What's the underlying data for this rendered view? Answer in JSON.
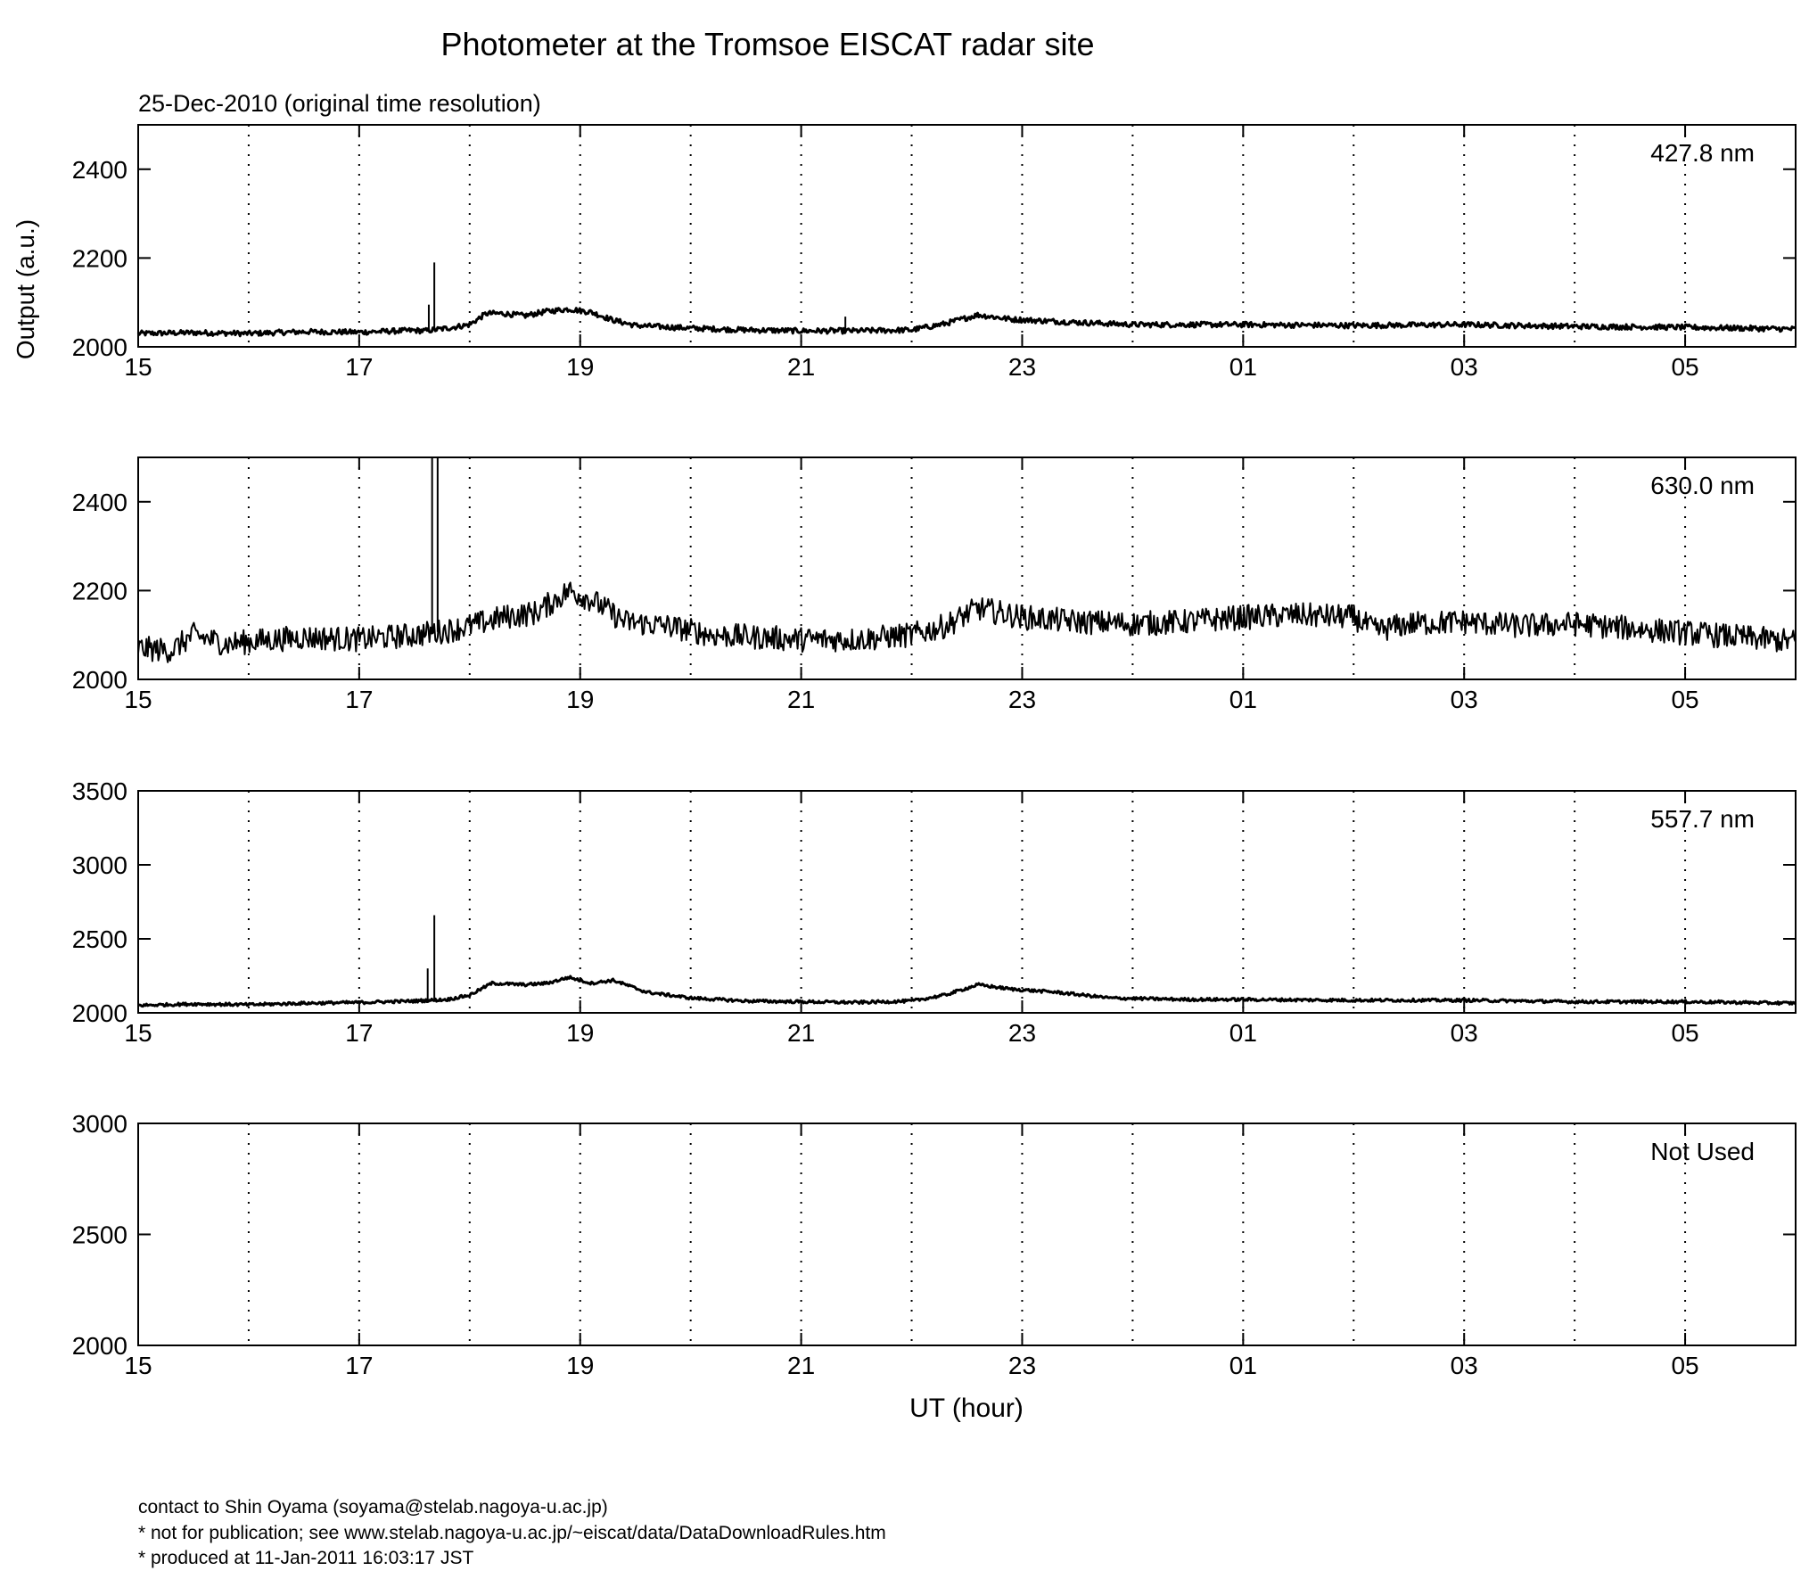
{
  "title": "Photometer at the Tromsoe EISCAT radar site",
  "subtitle": "25-Dec-2010 (original time resolution)",
  "colors": {
    "background": "#ffffff",
    "ink": "#000000"
  },
  "footer": {
    "contact": "contact to Shin Oyama (soyama@stelab.nagoya-u.ac.jp)",
    "notice": "* not for publication; see www.stelab.nagoya-u.ac.jp/~eiscat/data/DataDownloadRules.htm",
    "produced": "* produced at 11-Jan-2011 16:03:17 JST"
  },
  "chart_data": [
    {
      "type": "line",
      "label": "427.8 nm",
      "ylabel": "Output (a.u.)",
      "xlabel": "",
      "xlim": [
        15,
        30
      ],
      "ylim": [
        2000,
        2500
      ],
      "xticks": [
        "15",
        "17",
        "19",
        "21",
        "23",
        "01",
        "03",
        "05"
      ],
      "yticks": [
        2000,
        2200,
        2400
      ],
      "grid": "dotted vertical every hour",
      "noise": 6,
      "series": [
        {
          "x": [
            15,
            15.5,
            16,
            16.5,
            17,
            17.5,
            17.6,
            17.8,
            18,
            18.15,
            18.3,
            18.5,
            18.7,
            18.9,
            19.1,
            19.3,
            19.5,
            20,
            20.5,
            21,
            21.5,
            22,
            22.3,
            22.6,
            22.9,
            23.5,
            24,
            25,
            26,
            27,
            28,
            29,
            30
          ],
          "y": [
            2030,
            2032,
            2030,
            2034,
            2033,
            2037,
            2036,
            2042,
            2050,
            2075,
            2075,
            2070,
            2080,
            2085,
            2078,
            2060,
            2048,
            2042,
            2038,
            2036,
            2036,
            2038,
            2052,
            2072,
            2062,
            2055,
            2050,
            2050,
            2048,
            2050,
            2046,
            2044,
            2040
          ]
        }
      ],
      "spikes": [
        {
          "x": 17.68,
          "y": 2190
        },
        {
          "x": 17.63,
          "y": 2095
        },
        {
          "x": 21.4,
          "y": 2068
        }
      ]
    },
    {
      "type": "line",
      "label": "630.0 nm",
      "ylabel": "",
      "xlabel": "",
      "xlim": [
        15,
        30
      ],
      "ylim": [
        2000,
        2500
      ],
      "xticks": [
        "15",
        "17",
        "19",
        "21",
        "23",
        "01",
        "03",
        "05"
      ],
      "yticks": [
        2000,
        2200,
        2400
      ],
      "grid": "dotted vertical every hour",
      "noise": 28,
      "series": [
        {
          "x": [
            15,
            15.3,
            15.5,
            15.8,
            16,
            16.5,
            17,
            17.5,
            17.8,
            18,
            18.3,
            18.6,
            18.9,
            19.1,
            19.4,
            19.8,
            20.2,
            21,
            21.5,
            22,
            22.3,
            22.6,
            23,
            23.5,
            24,
            24.5,
            25,
            25.5,
            26,
            26.2,
            26.5,
            27,
            27.5,
            28,
            28.5,
            29,
            30
          ],
          "y": [
            2070,
            2065,
            2100,
            2080,
            2085,
            2095,
            2090,
            2100,
            2110,
            2120,
            2140,
            2150,
            2200,
            2180,
            2130,
            2120,
            2100,
            2090,
            2090,
            2100,
            2120,
            2160,
            2140,
            2130,
            2125,
            2130,
            2140,
            2145,
            2140,
            2110,
            2125,
            2130,
            2120,
            2125,
            2115,
            2105,
            2085
          ]
        }
      ],
      "spikes": [
        {
          "x": 17.66,
          "y": 2500
        },
        {
          "x": 17.71,
          "y": 2500
        }
      ]
    },
    {
      "type": "line",
      "label": "557.7 nm",
      "ylabel": "",
      "xlabel": "",
      "xlim": [
        15,
        30
      ],
      "ylim": [
        2000,
        3500
      ],
      "xticks": [
        "15",
        "17",
        "19",
        "21",
        "23",
        "01",
        "03",
        "05"
      ],
      "yticks": [
        2000,
        2500,
        3000,
        3500
      ],
      "grid": "dotted vertical every hour",
      "noise": 10,
      "series": [
        {
          "x": [
            15,
            15.5,
            16,
            16.5,
            17,
            17.5,
            17.8,
            18,
            18.2,
            18.5,
            18.7,
            18.9,
            19.1,
            19.3,
            19.6,
            20,
            20.5,
            21,
            21.5,
            22,
            22.3,
            22.6,
            22.9,
            23.3,
            23.8,
            24.5,
            25,
            26,
            27,
            28,
            29,
            30
          ],
          "y": [
            2050,
            2060,
            2055,
            2065,
            2070,
            2080,
            2090,
            2120,
            2200,
            2190,
            2200,
            2240,
            2200,
            2220,
            2140,
            2100,
            2080,
            2075,
            2070,
            2080,
            2120,
            2190,
            2160,
            2140,
            2100,
            2090,
            2090,
            2085,
            2085,
            2075,
            2075,
            2065
          ]
        }
      ],
      "spikes": [
        {
          "x": 17.68,
          "y": 2660
        },
        {
          "x": 17.62,
          "y": 2300
        }
      ]
    },
    {
      "type": "line",
      "label": "Not Used",
      "ylabel": "",
      "xlabel": "UT (hour)",
      "xlim": [
        15,
        30
      ],
      "ylim": [
        2000,
        3000
      ],
      "xticks": [
        "15",
        "17",
        "19",
        "21",
        "23",
        "01",
        "03",
        "05"
      ],
      "yticks": [
        2000,
        2500,
        3000
      ],
      "grid": "dotted vertical every hour",
      "noise": 0,
      "series": [],
      "spikes": []
    }
  ]
}
